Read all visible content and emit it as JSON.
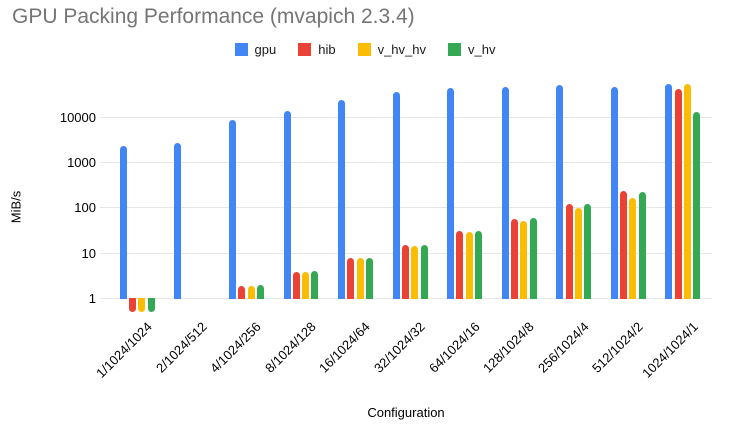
{
  "chart_data": {
    "type": "bar",
    "title": "GPU Packing Performance (mvapich 2.3.4)",
    "xlabel": "Configuration",
    "ylabel": "MiB/s",
    "y_scale": "log",
    "ylim": [
      0.46,
      62000
    ],
    "yticks": [
      1,
      10,
      100,
      1000,
      10000
    ],
    "grid": true,
    "legend_position": "top",
    "categories": [
      "1/1024/1024",
      "2/1024/512",
      "4/1024/256",
      "8/1024/128",
      "16/1024/64",
      "32/1024/32",
      "64/1024/16",
      "128/1024/8",
      "256/1024/4",
      "512/1024/2",
      "1024/1024/1"
    ],
    "series": [
      {
        "name": "gpu",
        "color": "#4285F4",
        "values": [
          2300,
          2700,
          8500,
          13500,
          23000,
          35000,
          43000,
          46000,
          50000,
          46000,
          52000
        ]
      },
      {
        "name": "hib",
        "color": "#EA4335",
        "values": [
          0.5,
          null,
          1.8,
          3.7,
          7.5,
          14.5,
          30,
          56,
          120,
          225,
          41000
        ]
      },
      {
        "name": "v_hv_hv",
        "color": "#FBBC04",
        "values": [
          0.5,
          null,
          1.8,
          3.7,
          7.5,
          14,
          29,
          51,
          95,
          160,
          52000
        ]
      },
      {
        "name": "v_hv",
        "color": "#34A853",
        "values": [
          0.5,
          null,
          1.9,
          3.9,
          7.8,
          15,
          30,
          58,
          118,
          215,
          12900
        ]
      }
    ]
  },
  "colors": {
    "title_text": "#757575",
    "gridline": "#e6e6e6",
    "axis_text": "#000000",
    "background": "#ffffff"
  }
}
